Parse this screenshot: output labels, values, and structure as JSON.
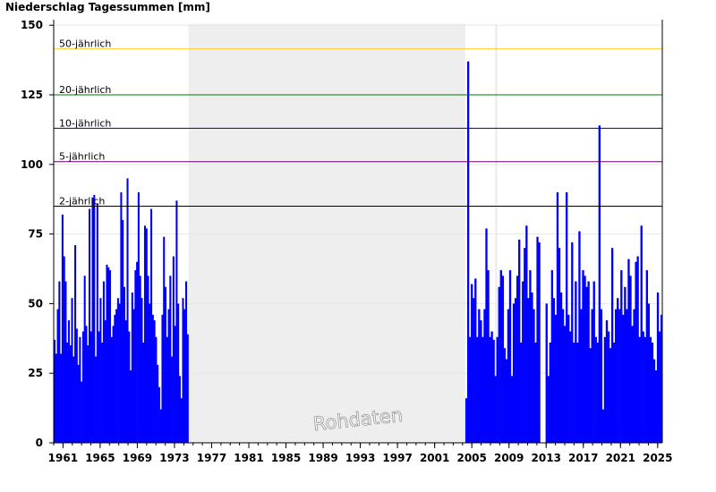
{
  "chart_data": {
    "type": "bar",
    "title": "Niederschlag Tagessummen [mm]",
    "xlabel": "",
    "ylabel": "",
    "xlim": [
      1960.0,
      2025.5
    ],
    "ylim": [
      0,
      152
    ],
    "y_ticks": [
      0,
      25,
      50,
      75,
      100,
      125,
      150
    ],
    "x_ticks": [
      "1961",
      "1965",
      "1969",
      "1973",
      "1977",
      "1981",
      "1985",
      "1989",
      "1993",
      "1997",
      "2001",
      "2005",
      "2009",
      "2013",
      "2017",
      "2021",
      "2025"
    ],
    "bar_color": "#0000ff",
    "grid": true,
    "legend": "none",
    "watermark": "Rohdaten",
    "no_data_periods": [
      {
        "from": 1974.5,
        "to": 2004.3
      },
      {
        "from": 2007.5,
        "to": 2007.75
      }
    ],
    "thresholds": [
      {
        "label": "50-jährlich",
        "value": 141.5,
        "color": "#ffcc33"
      },
      {
        "label": "20-jährlich",
        "value": 125.0,
        "color": "#007700"
      },
      {
        "label": "10-jährlich",
        "value": 113.0,
        "color": "#000099"
      },
      {
        "label": "5-jährlich",
        "value": 101.0,
        "color": "#660066"
      },
      {
        "label": "2-jährlich",
        "value": 85.0,
        "color": "#000000"
      }
    ],
    "series": [
      {
        "period": "1960-1974",
        "x_start": 1960.0,
        "x_end": 1974.5,
        "values": [
          37,
          32,
          48,
          58,
          32,
          82,
          67,
          58,
          36,
          44,
          35,
          52,
          31,
          71,
          41,
          28,
          38,
          22,
          40,
          60,
          42,
          35,
          84,
          40,
          88,
          89,
          31,
          86,
          40,
          52,
          36,
          58,
          44,
          64,
          63,
          62,
          38,
          42,
          46,
          48,
          52,
          50,
          90,
          80,
          56,
          44,
          95,
          40,
          26,
          54,
          48,
          62,
          65,
          90,
          60,
          52,
          36,
          78,
          77,
          60,
          50,
          84,
          46,
          44,
          38,
          28,
          20,
          12,
          46,
          74,
          56,
          38,
          48,
          60,
          31,
          67,
          42,
          87,
          50,
          24,
          16,
          52,
          48,
          58,
          39
        ]
      },
      {
        "period": "2004-2025",
        "x_start": 2004.3,
        "x_end": 2025.5,
        "values": [
          16,
          137,
          38,
          57,
          52,
          59,
          38,
          48,
          44,
          38,
          48,
          77,
          62,
          38,
          40,
          37,
          24,
          38,
          56,
          62,
          60,
          34,
          30,
          48,
          62,
          24,
          50,
          52,
          60,
          73,
          36,
          58,
          70,
          78,
          52,
          62,
          54,
          48,
          36,
          74,
          72,
          0,
          0,
          0,
          50,
          24,
          36,
          62,
          52,
          46,
          90,
          70,
          54,
          48,
          42,
          90,
          46,
          40,
          72,
          36,
          58,
          36,
          76,
          48,
          62,
          60,
          56,
          58,
          34,
          48,
          58,
          38,
          36,
          114,
          48,
          12,
          38,
          44,
          40,
          34,
          70,
          36,
          48,
          52,
          48,
          62,
          46,
          56,
          48,
          66,
          60,
          42,
          48,
          65,
          67,
          38,
          78,
          40,
          38,
          62,
          50,
          38,
          36,
          30,
          26,
          54,
          40,
          46
        ]
      }
    ]
  }
}
